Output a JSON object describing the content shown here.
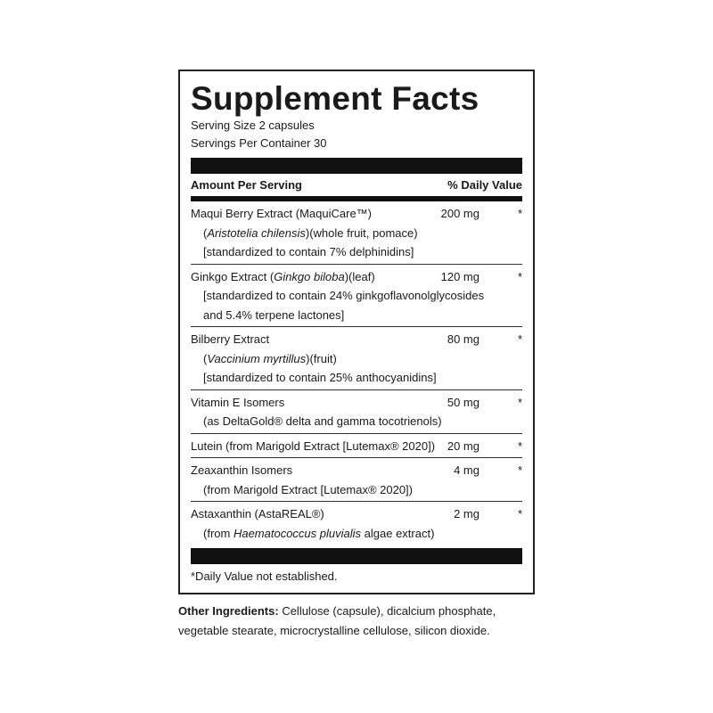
{
  "title": "Supplement Facts",
  "serving_size": "Serving Size 2 capsules",
  "servings_per_container": "Servings Per Container 30",
  "header": {
    "amount": "Amount Per Serving",
    "daily_value": "% Daily Value"
  },
  "rows": [
    {
      "name": [
        "Maqui Berry Extract (MaquiCare™)"
      ],
      "amount": "200 mg",
      "daily_value": "*",
      "details": [
        [
          "(",
          {
            "text": "Aristotelia chilensis",
            "italic": true
          },
          ")(whole fruit, pomace)"
        ],
        [
          "[standardized to contain 7% delphinidins]"
        ]
      ]
    },
    {
      "name": [
        "Ginkgo Extract (",
        {
          "text": "Ginkgo biloba",
          "italic": true
        },
        ")(leaf)"
      ],
      "amount": "120 mg",
      "daily_value": "*",
      "details": [
        [
          "[standardized to contain 24% ginkgoflavonolglycosides"
        ],
        [
          "and 5.4% terpene lactones]"
        ]
      ]
    },
    {
      "name": [
        "Bilberry Extract"
      ],
      "amount": "80 mg",
      "daily_value": "*",
      "details": [
        [
          "(",
          {
            "text": "Vaccinium myrtillus",
            "italic": true
          },
          ")(fruit)"
        ],
        [
          "[standardized to contain 25% anthocyanidins]"
        ]
      ]
    },
    {
      "name": [
        "Vitamin E Isomers"
      ],
      "amount": "50 mg",
      "daily_value": "*",
      "details": [
        [
          "(as DeltaGold® delta and gamma tocotrienols)"
        ]
      ]
    },
    {
      "name": [
        "Lutein (from Marigold Extract [Lutemax® 2020])"
      ],
      "amount": "20 mg",
      "daily_value": "*",
      "details": []
    },
    {
      "name": [
        "Zeaxanthin Isomers"
      ],
      "amount": "4 mg",
      "daily_value": "*",
      "details": [
        [
          "(from Marigold Extract [Lutemax® 2020])"
        ]
      ]
    },
    {
      "name": [
        "Astaxanthin (AstaREAL®)"
      ],
      "amount": "2 mg",
      "daily_value": "*",
      "details": [
        [
          "(from ",
          {
            "text": "Haematococcus pluvialis",
            "italic": true
          },
          " algae extract)"
        ]
      ]
    }
  ],
  "footnote": "*Daily Value not established.",
  "other_ingredients": {
    "label": "Other Ingredients:",
    "lines": [
      "Cellulose (capsule), dicalcium phosphate,",
      "vegetable stearate, microcrystalline cellulose, silicon dioxide."
    ]
  }
}
